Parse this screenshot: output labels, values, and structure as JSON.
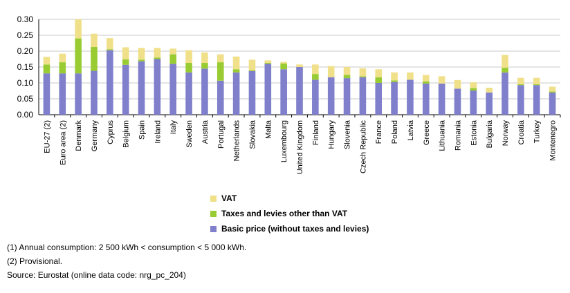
{
  "chart_data": {
    "type": "bar",
    "stacked": true,
    "categories": [
      "EU-27 (2)",
      "Euro area (2)",
      "Denmark",
      "Germany",
      "Cyprus",
      "Belgium",
      "Spain",
      "Ireland",
      "Italy",
      "Sweden",
      "Austria",
      "Portugal",
      "Netherlands",
      "Slovakia",
      "Malta",
      "Luxembourg",
      "United Kingdom",
      "Finland",
      "Hungary",
      "Slovenia",
      "Czech Republic",
      "France",
      "Poland",
      "Latvia",
      "Greece",
      "Lithuania",
      "Romania",
      "Estonia",
      "Bulgaria",
      "Norway",
      "Croatia",
      "Turkey",
      "Montenegro"
    ],
    "series": [
      {
        "name": "Basic price (without taxes and levies)",
        "color": "#7f7fcc",
        "values": [
          0.13,
          0.13,
          0.13,
          0.138,
          0.203,
          0.157,
          0.168,
          0.175,
          0.16,
          0.133,
          0.145,
          0.107,
          0.133,
          0.137,
          0.16,
          0.143,
          0.15,
          0.11,
          0.118,
          0.115,
          0.118,
          0.1,
          0.103,
          0.11,
          0.098,
          0.098,
          0.082,
          0.076,
          0.07,
          0.133,
          0.093,
          0.093,
          0.07
        ]
      },
      {
        "name": "Taxes and levies other than VAT",
        "color": "#99cc33",
        "values": [
          0.028,
          0.035,
          0.11,
          0.075,
          0.003,
          0.017,
          0.005,
          0.005,
          0.03,
          0.03,
          0.018,
          0.058,
          0.01,
          0.003,
          0.003,
          0.018,
          0.0,
          0.018,
          0.0,
          0.01,
          0.003,
          0.018,
          0.005,
          0.0,
          0.007,
          0.0,
          0.0,
          0.008,
          0.0,
          0.015,
          0.003,
          0.003,
          0.003
        ]
      },
      {
        "name": "VAT",
        "color": "#f0e08a",
        "values": [
          0.024,
          0.027,
          0.06,
          0.042,
          0.035,
          0.038,
          0.037,
          0.03,
          0.018,
          0.04,
          0.033,
          0.025,
          0.04,
          0.033,
          0.008,
          0.005,
          0.008,
          0.03,
          0.035,
          0.025,
          0.025,
          0.025,
          0.025,
          0.023,
          0.02,
          0.023,
          0.027,
          0.018,
          0.015,
          0.04,
          0.02,
          0.02,
          0.015
        ]
      }
    ],
    "ylim": [
      0,
      0.3
    ],
    "yticks": [
      "0.00",
      "0.05",
      "0.10",
      "0.15",
      "0.20",
      "0.25",
      "0.30"
    ],
    "grid": true,
    "legend_placement": "bottom"
  },
  "legend": [
    {
      "label": "VAT",
      "color": "#f0e08a"
    },
    {
      "label": "Taxes and levies other than VAT",
      "color": "#99cc33"
    },
    {
      "label": "Basic price (without taxes and levies)",
      "color": "#7f7fcc"
    }
  ],
  "notes": [
    "(1) Annual consumption: 2 500 kWh < consumption < 5 000 kWh.",
    "(2) Provisional.",
    "Source: Eurostat (online data code: nrg_pc_204)"
  ]
}
